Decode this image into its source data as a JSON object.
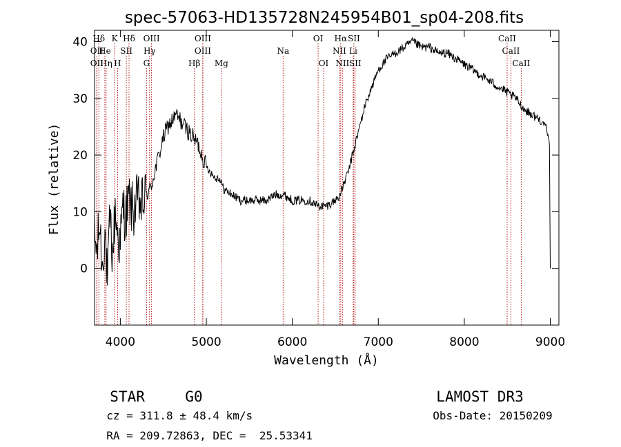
{
  "chart_data": {
    "type": "line",
    "title": "spec-57063-HD135728N245954B01_sp04-208.fits",
    "xlabel": "Wavelength (Å)",
    "ylabel": "Flux (relative)",
    "xlim": [
      3700,
      9100
    ],
    "ylim": [
      -10,
      42
    ],
    "xticks": [
      4000,
      5000,
      6000,
      7000,
      8000,
      9000
    ],
    "yticks": [
      0,
      10,
      20,
      30,
      40
    ],
    "series": [
      {
        "name": "flux",
        "points": [
          [
            3700,
            5
          ],
          [
            3730,
            3
          ],
          [
            3760,
            8
          ],
          [
            3790,
            0
          ],
          [
            3820,
            7
          ],
          [
            3850,
            -3
          ],
          [
            3880,
            9
          ],
          [
            3910,
            2
          ],
          [
            3940,
            10
          ],
          [
            3970,
            6
          ],
          [
            4000,
            4
          ],
          [
            4030,
            11
          ],
          [
            4060,
            9
          ],
          [
            4100,
            12
          ],
          [
            4150,
            10
          ],
          [
            4200,
            12
          ],
          [
            4250,
            11
          ],
          [
            4300,
            13
          ],
          [
            4350,
            14
          ],
          [
            4400,
            17
          ],
          [
            4450,
            20
          ],
          [
            4500,
            23
          ],
          [
            4550,
            25
          ],
          [
            4600,
            26
          ],
          [
            4650,
            27
          ],
          [
            4700,
            26
          ],
          [
            4750,
            25
          ],
          [
            4800,
            24
          ],
          [
            4850,
            23
          ],
          [
            4900,
            22
          ],
          [
            4950,
            20
          ],
          [
            5000,
            18
          ],
          [
            5050,
            17
          ],
          [
            5100,
            16
          ],
          [
            5150,
            16
          ],
          [
            5200,
            14
          ],
          [
            5300,
            13
          ],
          [
            5400,
            12
          ],
          [
            5500,
            12
          ],
          [
            5600,
            12
          ],
          [
            5700,
            12
          ],
          [
            5800,
            13
          ],
          [
            5900,
            13
          ],
          [
            6000,
            12
          ],
          [
            6100,
            12
          ],
          [
            6200,
            12
          ],
          [
            6300,
            11
          ],
          [
            6400,
            11
          ],
          [
            6500,
            12
          ],
          [
            6560,
            13
          ],
          [
            6600,
            15
          ],
          [
            6650,
            17
          ],
          [
            6700,
            20
          ],
          [
            6750,
            23
          ],
          [
            6800,
            26
          ],
          [
            6850,
            29
          ],
          [
            6900,
            31
          ],
          [
            6950,
            33
          ],
          [
            7000,
            35
          ],
          [
            7100,
            37
          ],
          [
            7200,
            38
          ],
          [
            7300,
            39
          ],
          [
            7400,
            40
          ],
          [
            7500,
            39
          ],
          [
            7600,
            39
          ],
          [
            7700,
            38
          ],
          [
            7800,
            38
          ],
          [
            7900,
            37
          ],
          [
            8000,
            36
          ],
          [
            8100,
            35
          ],
          [
            8200,
            34
          ],
          [
            8300,
            33
          ],
          [
            8400,
            32
          ],
          [
            8500,
            31
          ],
          [
            8600,
            30
          ],
          [
            8700,
            28
          ],
          [
            8800,
            27
          ],
          [
            8900,
            26
          ],
          [
            8950,
            25
          ],
          [
            8990,
            22
          ],
          [
            9000,
            0
          ]
        ]
      }
    ],
    "line_markers": [
      {
        "label": "Hδ",
        "x": 3750,
        "row": 0
      },
      {
        "label": "K",
        "x": 3934,
        "row": 0
      },
      {
        "label": "Hδ",
        "x": 4101,
        "row": 0
      },
      {
        "label": "OIII",
        "x": 4363,
        "row": 0
      },
      {
        "label": "OIII",
        "x": 4959,
        "row": 0
      },
      {
        "label": "OI",
        "x": 6300,
        "row": 0
      },
      {
        "label": "Hα",
        "x": 6563,
        "row": 0
      },
      {
        "label": "SII",
        "x": 6716,
        "row": 0
      },
      {
        "label": "CaII",
        "x": 8498,
        "row": 0
      },
      {
        "label": "OII",
        "x": 3727,
        "row": 1
      },
      {
        "label": "He",
        "x": 3820,
        "row": 1
      },
      {
        "label": "SII",
        "x": 4070,
        "row": 1
      },
      {
        "label": "Hγ",
        "x": 4340,
        "row": 1
      },
      {
        "label": "OIII",
        "x": 4959,
        "row": 1
      },
      {
        "label": "Na",
        "x": 5893,
        "row": 1
      },
      {
        "label": "NII",
        "x": 6548,
        "row": 1
      },
      {
        "label": "Li",
        "x": 6708,
        "row": 1
      },
      {
        "label": "CaII",
        "x": 8542,
        "row": 1
      },
      {
        "label": "OII",
        "x": 3727,
        "row": 2
      },
      {
        "label": "Hη",
        "x": 3835,
        "row": 2
      },
      {
        "label": "H",
        "x": 3968,
        "row": 2
      },
      {
        "label": "G",
        "x": 4305,
        "row": 2
      },
      {
        "label": "Hβ",
        "x": 4861,
        "row": 2
      },
      {
        "label": "Mg",
        "x": 5175,
        "row": 2
      },
      {
        "label": "OI",
        "x": 6364,
        "row": 2
      },
      {
        "label": "NII",
        "x": 6583,
        "row": 2
      },
      {
        "label": "SII",
        "x": 6731,
        "row": 2
      },
      {
        "label": "CaII",
        "x": 8662,
        "row": 2
      }
    ]
  },
  "info": {
    "object_type": "STAR",
    "subclass": "G0",
    "survey": "LAMOST DR3",
    "redshift": "cz = 311.8 ± 48.4 km/s",
    "obs_date": "Obs-Date: 20150209",
    "coords": "RA = 209.72863, DEC =  25.53341"
  },
  "colors": {
    "spectrum": "#000000",
    "marker_line": "#b00000",
    "background": "#ffffff"
  }
}
